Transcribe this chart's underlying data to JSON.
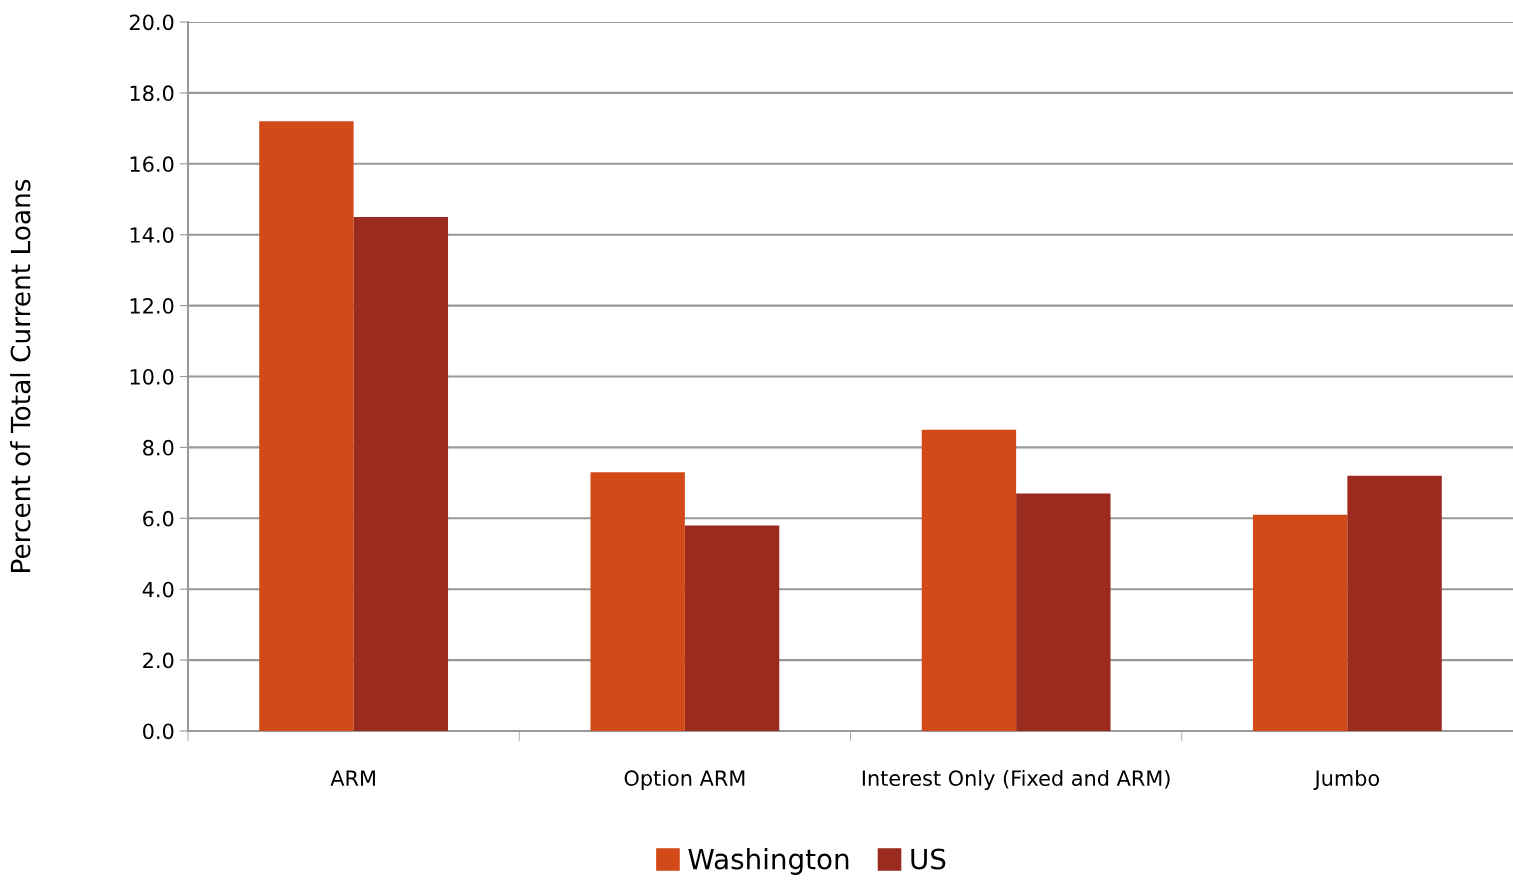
{
  "chart_data": {
    "type": "bar",
    "ylabel": "Percent of Total Current Loans",
    "categories": [
      "ARM",
      "Option ARM",
      "Interest Only (Fixed and ARM)",
      "Jumbo"
    ],
    "series": [
      {
        "name": "Washington",
        "color": "#d24a18",
        "values": [
          17.2,
          7.3,
          8.5,
          6.1
        ]
      },
      {
        "name": "US",
        "color": "#9c2b1f",
        "values": [
          14.5,
          5.8,
          6.7,
          7.2
        ]
      }
    ],
    "ylim": [
      0,
      20
    ],
    "yticks": [
      {
        "value": 0,
        "label": "0.0"
      },
      {
        "value": 2,
        "label": "2.0"
      },
      {
        "value": 4,
        "label": "4.0"
      },
      {
        "value": 6,
        "label": "6.0"
      },
      {
        "value": 8,
        "label": "8.0"
      },
      {
        "value": 10,
        "label": "10.0"
      },
      {
        "value": 12,
        "label": "12.0"
      },
      {
        "value": 14,
        "label": "14.0"
      },
      {
        "value": 16,
        "label": "16.0"
      },
      {
        "value": 18,
        "label": "18.0"
      },
      {
        "value": 20,
        "label": "20.0"
      }
    ],
    "grid": "y",
    "legend": "bottom"
  }
}
